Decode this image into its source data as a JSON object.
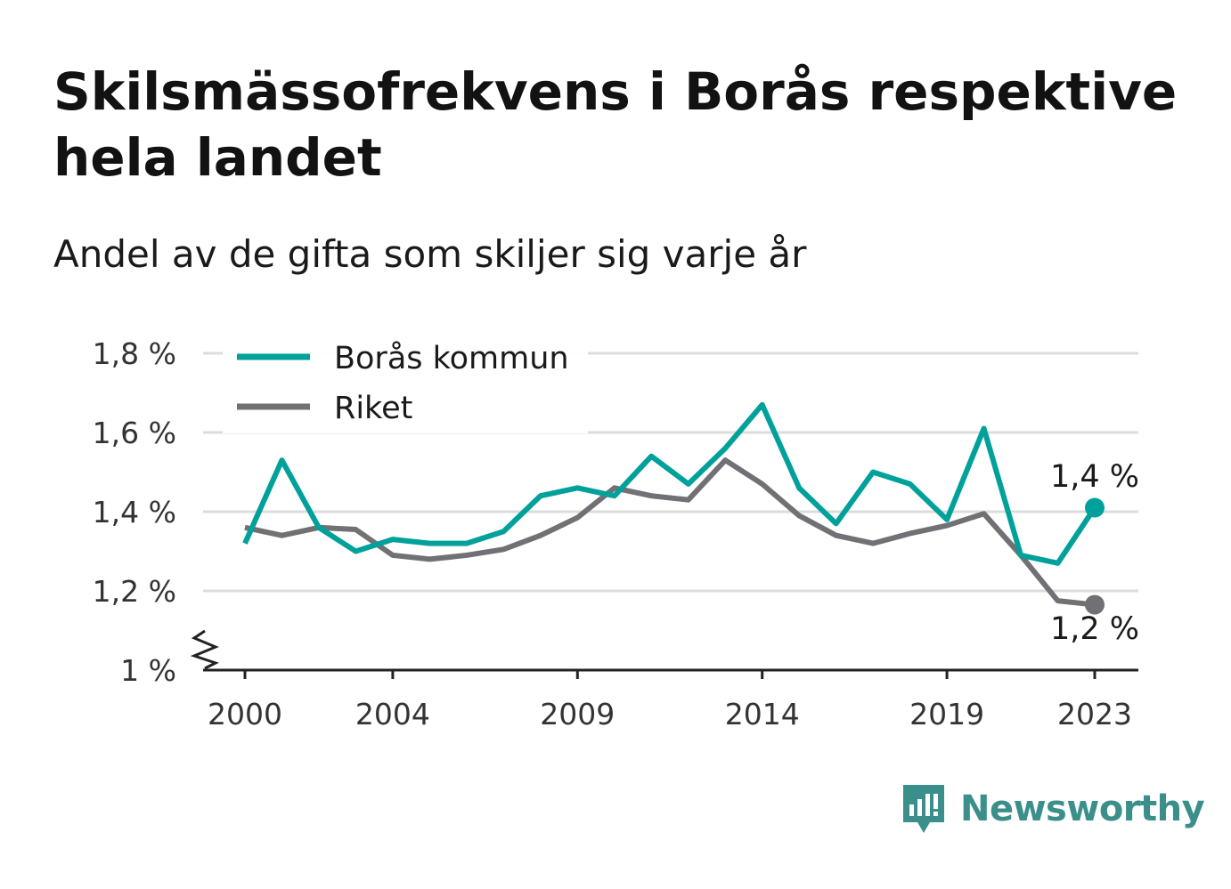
{
  "title": "Skilsmässofrekvens i Borås respektive hela landet",
  "subtitle": "Andel av de gifta som skiljer sig varje år",
  "brand": {
    "name": "Newsworthy",
    "icon": "newsworthy-logo-icon",
    "color": "#3a8f8b"
  },
  "chart_data": {
    "type": "line",
    "x": [
      2000,
      2001,
      2002,
      2003,
      2004,
      2005,
      2006,
      2007,
      2008,
      2009,
      2010,
      2011,
      2012,
      2013,
      2014,
      2015,
      2016,
      2017,
      2018,
      2019,
      2020,
      2021,
      2022,
      2023
    ],
    "x_ticks": [
      2000,
      2004,
      2009,
      2014,
      2019,
      2023
    ],
    "y_ticks": [
      1.0,
      1.2,
      1.4,
      1.6,
      1.8
    ],
    "y_tick_labels": [
      "1 %",
      "1,2 %",
      "1,4 %",
      "1,6 %",
      "1,8 %"
    ],
    "ylim": [
      1.0,
      1.8
    ],
    "axis_break": true,
    "grid": true,
    "legend_position": "top-left",
    "series": [
      {
        "name": "Borås kommun",
        "color": "#00a19a",
        "values": [
          1.32,
          1.53,
          1.36,
          1.3,
          1.33,
          1.32,
          1.32,
          1.35,
          1.44,
          1.46,
          1.44,
          1.54,
          1.47,
          1.56,
          1.67,
          1.46,
          1.37,
          1.5,
          1.47,
          1.38,
          1.61,
          1.29,
          1.27,
          1.41
        ],
        "end_label": "1,4 %"
      },
      {
        "name": "Riket",
        "color": "#717075",
        "values": [
          1.36,
          1.34,
          1.36,
          1.355,
          1.29,
          1.28,
          1.29,
          1.305,
          1.34,
          1.385,
          1.46,
          1.44,
          1.43,
          1.53,
          1.47,
          1.39,
          1.34,
          1.32,
          1.345,
          1.365,
          1.395,
          1.29,
          1.175,
          1.165
        ],
        "end_label": "1,2 %"
      }
    ]
  }
}
